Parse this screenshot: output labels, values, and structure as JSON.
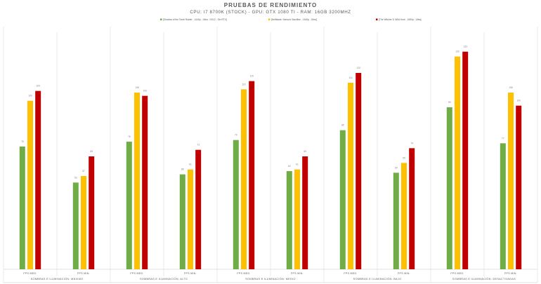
{
  "chart_data": {
    "type": "bar",
    "title": "PRUEBAS DE RENDIMIENTO",
    "subtitle": "CPU: I7 8700K (STOCK) - GPU: GTX 1080 TI - RAM: 16GB 3200MHZ",
    "groups": [
      {
        "label": "SOMBRAS E ILUMINACIÓN: MÁXIMO",
        "categories": [
          "FPS MED.",
          "FPS MIN."
        ]
      },
      {
        "label": "SOMBRAS E ILUMINACIÓN: ALTO",
        "categories": [
          "FPS MED.",
          "FPS MIN."
        ]
      },
      {
        "label": "SOMBRAS E ILUMINACIÓN: MEDIO",
        "categories": [
          "FPS MED.",
          "FPS MIN."
        ]
      },
      {
        "label": "SOMBRAS E ILUMINACIÓN: BAJO",
        "categories": [
          "FPS MED.",
          "FPS MIN."
        ]
      },
      {
        "label": "SOMBRAS E ILUMINACIÓN: DESACTIVADAS",
        "categories": [
          "FPS MED.",
          "FPS MIN."
        ]
      }
    ],
    "series": [
      {
        "name": "[Shadow of the Tomb Raider - 1440p - Ultra - DX12 - Sin RTX]",
        "color": "#70ad47",
        "values": [
          75,
          53,
          78,
          58,
          79,
          60,
          85,
          59,
          99,
          77
        ]
      },
      {
        "name": "[Hellblade: Senua's Sacrifice - 1440p - Ultra]",
        "color": "#ffc000",
        "values": [
          103,
          57,
          108,
          61,
          110,
          61,
          114,
          65,
          130,
          108
        ]
      },
      {
        "name": "[The Witcher 3: Wild Hunt - 1080p - Ultra]",
        "color": "#c00000",
        "values": [
          109,
          69,
          106,
          73,
          115,
          69,
          120,
          74,
          133,
          100
        ]
      }
    ],
    "ylim": [
      0,
      150
    ],
    "grid": false,
    "legend": "top"
  }
}
